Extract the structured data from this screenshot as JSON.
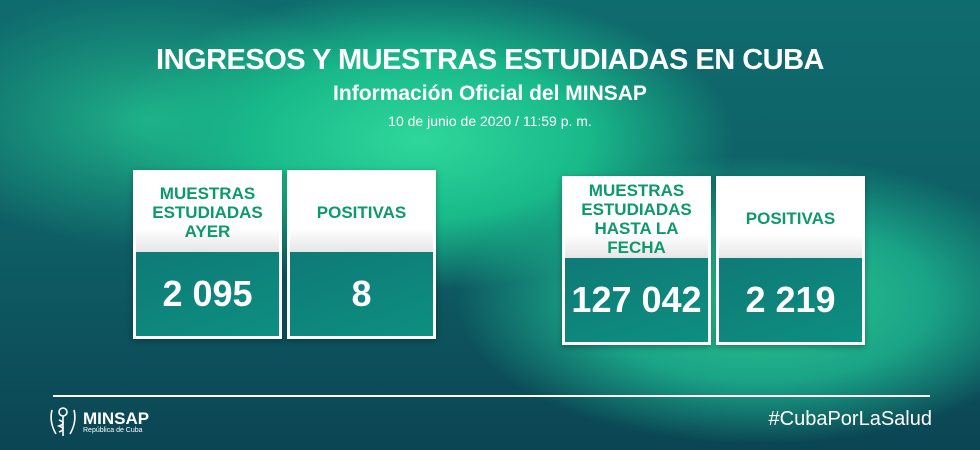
{
  "header": {
    "title": "INGRESOS Y MUESTRAS ESTUDIADAS EN CUBA",
    "subtitle": "Información Oficial del MINSAP",
    "date": "10 de junio de 2020 / 11:59 p. m."
  },
  "cards": [
    {
      "label": "MUESTRAS ESTUDIADAS AYER",
      "value": "2 095"
    },
    {
      "label": "POSITIVAS",
      "value": "8"
    },
    {
      "label": "MUESTRAS ESTUDIADAS HASTA LA FECHA",
      "value": "127 042"
    },
    {
      "label": "POSITIVAS",
      "value": "2 219"
    }
  ],
  "footer": {
    "logo_name": "MINSAP",
    "logo_sub": "República de Cuba",
    "hashtag": "#CubaPorLaSalud"
  },
  "colors": {
    "accent": "#0d9a6b",
    "background": "#0e5d64"
  }
}
